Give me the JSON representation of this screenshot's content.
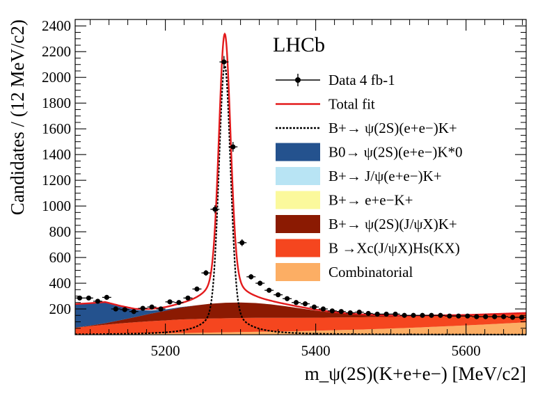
{
  "chart_data": {
    "type": "line",
    "title": "LHCb",
    "xlabel": "m_ψ(2S)(K+e+e−) [MeV/c2]",
    "ylabel": "Candidates / (12 MeV/c2)",
    "xlim": [
      5080,
      5680
    ],
    "ylim": [
      0,
      2450
    ],
    "x_ticks": [
      5200,
      5400,
      5600
    ],
    "y_ticks": [
      200,
      400,
      600,
      800,
      1000,
      1200,
      1400,
      1600,
      1800,
      2000,
      2200,
      2400
    ],
    "grid": false,
    "legend_position": "top-right",
    "legend": [
      {
        "label": "Data 4 fb-1",
        "style": "points",
        "color": "#000000"
      },
      {
        "label": "Total fit",
        "style": "line",
        "color": "#e31a1c"
      },
      {
        "label": "B+→ ψ(2S)(e+e−)K+",
        "style": "dotted",
        "color": "#000000"
      },
      {
        "label": "B0→ ψ(2S)(e+e−)K*0",
        "style": "fill",
        "color": "#24528e"
      },
      {
        "label": "B+→ J/ψ(e+e−)K+",
        "style": "fill",
        "color": "#b8e4f4"
      },
      {
        "label": "B+→ e+e−K+",
        "style": "fill",
        "color": "#fbf99c"
      },
      {
        "label": "B+→ ψ(2S)(J/ψX)K+",
        "style": "fill",
        "color": "#8b1a02"
      },
      {
        "label": "B →Xc(J/ψX)Hs(KX)",
        "style": "fill",
        "color": "#f5461f"
      },
      {
        "label": "Combinatorial",
        "style": "fill",
        "color": "#fcae64"
      }
    ],
    "data_points": {
      "x": [
        5086,
        5098,
        5110,
        5122,
        5134,
        5146,
        5158,
        5170,
        5182,
        5194,
        5206,
        5218,
        5230,
        5242,
        5254,
        5266,
        5278,
        5290,
        5302,
        5314,
        5326,
        5338,
        5350,
        5362,
        5374,
        5386,
        5398,
        5410,
        5422,
        5434,
        5446,
        5458,
        5470,
        5482,
        5494,
        5506,
        5518,
        5530,
        5542,
        5554,
        5566,
        5578,
        5590,
        5602,
        5614,
        5626,
        5638,
        5650,
        5662,
        5674
      ],
      "y": [
        285,
        285,
        260,
        290,
        200,
        195,
        180,
        205,
        215,
        200,
        255,
        250,
        285,
        355,
        480,
        975,
        2120,
        1460,
        715,
        450,
        400,
        345,
        310,
        280,
        250,
        240,
        215,
        200,
        185,
        180,
        170,
        175,
        165,
        160,
        160,
        160,
        150,
        150,
        150,
        150,
        150,
        145,
        145,
        145,
        140,
        140,
        140,
        140,
        135,
        135
      ],
      "xerr": 6
    },
    "components": {
      "x": [
        5080,
        5100,
        5120,
        5140,
        5160,
        5180,
        5200,
        5220,
        5240,
        5260,
        5280,
        5300,
        5320,
        5340,
        5360,
        5380,
        5400,
        5420,
        5440,
        5460,
        5480,
        5500,
        5520,
        5540,
        5560,
        5580,
        5600,
        5620,
        5640,
        5660,
        5680
      ],
      "combinatorial": [
        5,
        6,
        7,
        8,
        9,
        10,
        11,
        13,
        14,
        16,
        18,
        20,
        22,
        24,
        26,
        28,
        31,
        34,
        37,
        40,
        44,
        48,
        52,
        57,
        62,
        67,
        72,
        78,
        84,
        90,
        96
      ],
      "bxc_hs": [
        50,
        60,
        70,
        80,
        88,
        95,
        100,
        105,
        108,
        110,
        110,
        110,
        109,
        107,
        105,
        103,
        101,
        99,
        97,
        95,
        93,
        90,
        88,
        86,
        84,
        82,
        80,
        78,
        76,
        74,
        72
      ],
      "psi2s_jpsix": [
        0,
        5,
        12,
        25,
        40,
        58,
        75,
        93,
        105,
        115,
        120,
        120,
        115,
        105,
        90,
        73,
        55,
        40,
        28,
        20,
        13,
        8,
        5,
        3,
        2,
        1,
        0,
        0,
        0,
        0,
        0
      ],
      "b0_psi2s_kstar": [
        180,
        170,
        160,
        105,
        55,
        25,
        10,
        3,
        0,
        0,
        0,
        0,
        0,
        0,
        0,
        0,
        0,
        0,
        0,
        0,
        0,
        0,
        0,
        0,
        0,
        0,
        0,
        0,
        0,
        0,
        0
      ]
    },
    "signal": {
      "mean": 5279,
      "peak": 2090,
      "width_core": 7.5,
      "tail_scale": 22,
      "tail_fraction": 0.12
    }
  }
}
